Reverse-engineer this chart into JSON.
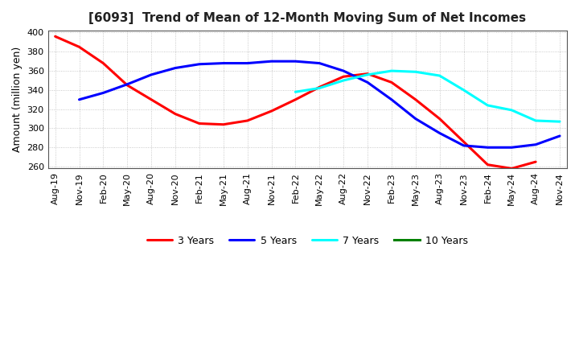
{
  "title": "[6093]  Trend of Mean of 12-Month Moving Sum of Net Incomes",
  "ylabel": "Amount (million yen)",
  "ylim": [
    258,
    402
  ],
  "yticks": [
    260,
    280,
    300,
    320,
    340,
    360,
    380,
    400
  ],
  "background_color": "#FFFFFF",
  "grid_color": "#BBBBBB",
  "x_labels": [
    "Aug-19",
    "Nov-19",
    "Feb-20",
    "May-20",
    "Aug-20",
    "Nov-20",
    "Feb-21",
    "May-21",
    "Aug-21",
    "Nov-21",
    "Feb-22",
    "May-22",
    "Aug-22",
    "Nov-22",
    "Feb-23",
    "May-23",
    "Aug-23",
    "Nov-23",
    "Feb-24",
    "May-24",
    "Aug-24",
    "Nov-24"
  ],
  "series_3yr": {
    "color": "#FF0000",
    "x_indices": [
      0,
      1,
      2,
      3,
      4,
      5,
      6,
      7,
      8,
      9,
      10,
      11,
      12,
      13,
      14,
      15,
      16,
      17,
      18,
      19,
      20
    ],
    "values": [
      396,
      385,
      368,
      345,
      330,
      315,
      305,
      304,
      308,
      318,
      330,
      343,
      354,
      357,
      348,
      330,
      310,
      286,
      262,
      258,
      265
    ]
  },
  "series_5yr": {
    "color": "#0000FF",
    "x_indices": [
      1,
      2,
      3,
      4,
      5,
      6,
      7,
      8,
      9,
      10,
      11,
      12,
      13,
      14,
      15,
      16,
      17,
      18,
      19,
      20,
      21
    ],
    "values": [
      330,
      337,
      346,
      356,
      363,
      367,
      368,
      368,
      370,
      370,
      368,
      360,
      348,
      330,
      310,
      295,
      282,
      280,
      280,
      283,
      292
    ]
  },
  "series_7yr": {
    "color": "#00FFFF",
    "x_indices": [
      10,
      11,
      12,
      13,
      14,
      15,
      16,
      17,
      18,
      19,
      20,
      21
    ],
    "values": [
      338,
      342,
      350,
      356,
      360,
      359,
      355,
      340,
      324,
      319,
      308,
      307
    ]
  },
  "series_10yr": {
    "color": "#008000",
    "x_indices": [],
    "values": []
  },
  "legend_entries": [
    "3 Years",
    "5 Years",
    "7 Years",
    "10 Years"
  ],
  "legend_colors": [
    "#FF0000",
    "#0000FF",
    "#00FFFF",
    "#008000"
  ],
  "title_fontsize": 11,
  "tick_fontsize": 8,
  "ylabel_fontsize": 9,
  "legend_fontsize": 9,
  "linewidth": 2.2
}
